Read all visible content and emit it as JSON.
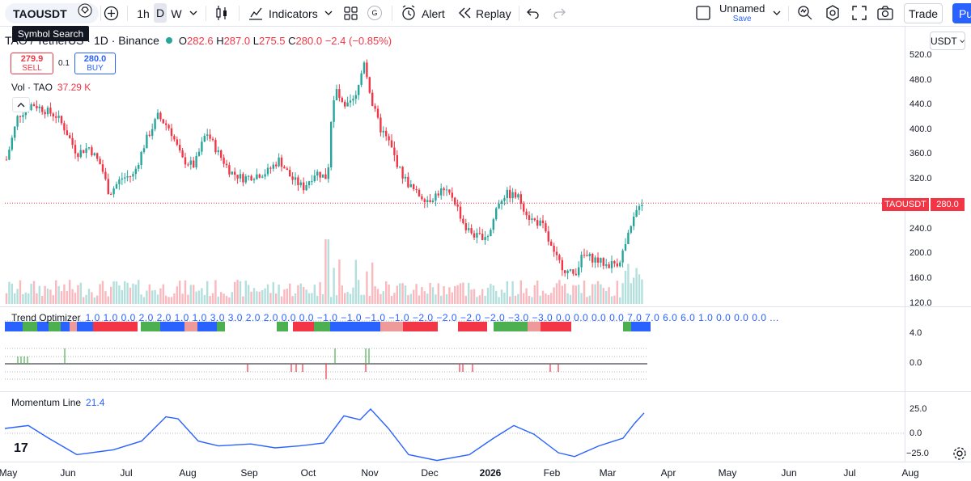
{
  "toolbar": {
    "symbol": "TAOUSDT",
    "tooltip": "Symbol Search",
    "intervals": [
      "1h",
      "D",
      "W"
    ],
    "selected_interval": "D",
    "indicators_label": "Indicators",
    "g_badge": "G",
    "alert_label": "Alert",
    "replay_label": "Replay",
    "layout_name": "Unnamed",
    "save_label": "Save",
    "trade_label": "Trade",
    "publish_label": "Pu"
  },
  "legend": {
    "symbol_title": "TAO / TetherUS · 1D · Binance",
    "open_label": "O",
    "open": "282.6",
    "high_label": "H",
    "high": "287.0",
    "low_label": "L",
    "low": "275.5",
    "close_label": "C",
    "close": "280.0",
    "change": "−2.4 (−0.85%)",
    "sell_price": "279.9",
    "sell_label": "SELL",
    "spread": "0.1",
    "buy_price": "280.0",
    "buy_label": "BUY",
    "vol_label": "Vol · TAO",
    "vol_value": "37.29 K"
  },
  "price_axis": {
    "currency": "USDT",
    "labels": [
      "520.0",
      "480.0",
      "440.0",
      "400.0",
      "360.0",
      "320.0",
      "240.0",
      "200.0",
      "160.0",
      "120.0"
    ],
    "last_tag_name": "TAOUSDT",
    "last_tag_value": "280.0"
  },
  "trend_optimizer": {
    "name": "Trend Optimizer",
    "values": "1.0  1.0  0.0  2.0  2.0  1.0  1.0  3.0  3.0  2.0  2.0  0.0  0.0  −1.0  −1.0  −1.0  −1.0  −2.0  −2.0  −2.0  −2.0  −3.0  −3.0  0.0  0.0  0.0  0.0  7.0  7.0  6.0  6.0  1.0  0.0  0.0  0.0  ...",
    "axis_labels": [
      "4.0",
      "0.0"
    ]
  },
  "momentum": {
    "name": "Momentum Line",
    "value": "21.4",
    "axis_labels": [
      "25.0",
      "0.0",
      "−25.0"
    ]
  },
  "time_axis": {
    "labels": [
      "May",
      "Jun",
      "Jul",
      "Aug",
      "Sep",
      "Oct",
      "Nov",
      "Dec",
      "2026",
      "Feb",
      "Mar",
      "Apr",
      "May",
      "Jun",
      "Jul",
      "Aug"
    ]
  },
  "colors": {
    "up": "#26a69a",
    "down": "#f23645",
    "momentum": "#2962ff",
    "accent": "#2962ff"
  },
  "tv_logo": "17"
}
